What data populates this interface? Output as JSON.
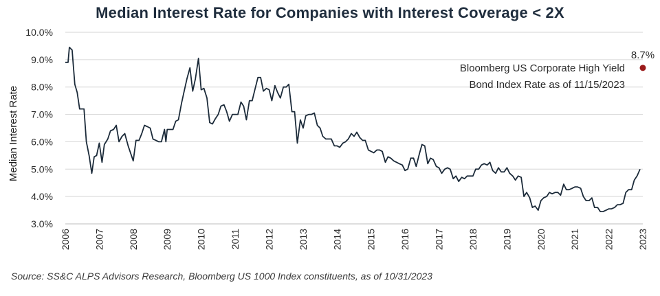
{
  "chart_data": {
    "type": "line",
    "title": "Median Interest Rate for Companies with Interest Coverage < 2X",
    "ylabel": "Median Interest Rate",
    "xlabel": "",
    "ylim": [
      3.0,
      10.0
    ],
    "y_ticks": [
      "10.0%",
      "9.0%",
      "8.0%",
      "7.0%",
      "6.0%",
      "5.0%",
      "4.0%",
      "3.0%"
    ],
    "x_ticks": [
      "2006",
      "2007",
      "2008",
      "2009",
      "2010",
      "2011",
      "2012",
      "2013",
      "2014",
      "2015",
      "2016",
      "2017",
      "2018",
      "2019",
      "2020",
      "2021",
      "2022",
      "2023"
    ],
    "xlim": [
      2006.0,
      2023.0
    ],
    "grid": true,
    "series": [
      {
        "name": "Median Interest Rate",
        "color": "#1c2b3a",
        "points": [
          [
            2006.0,
            8.9
          ],
          [
            2006.08,
            8.9
          ],
          [
            2006.12,
            9.45
          ],
          [
            2006.2,
            9.35
          ],
          [
            2006.28,
            8.1
          ],
          [
            2006.35,
            7.8
          ],
          [
            2006.42,
            7.2
          ],
          [
            2006.55,
            7.2
          ],
          [
            2006.62,
            6.0
          ],
          [
            2006.7,
            5.5
          ],
          [
            2006.78,
            4.85
          ],
          [
            2006.85,
            5.45
          ],
          [
            2006.92,
            5.5
          ],
          [
            2007.0,
            5.95
          ],
          [
            2007.08,
            5.25
          ],
          [
            2007.15,
            5.9
          ],
          [
            2007.25,
            6.1
          ],
          [
            2007.33,
            6.4
          ],
          [
            2007.42,
            6.45
          ],
          [
            2007.5,
            6.6
          ],
          [
            2007.58,
            6.0
          ],
          [
            2007.67,
            6.2
          ],
          [
            2007.75,
            6.3
          ],
          [
            2007.85,
            5.85
          ],
          [
            2008.0,
            5.3
          ],
          [
            2008.08,
            6.05
          ],
          [
            2008.17,
            6.05
          ],
          [
            2008.25,
            6.3
          ],
          [
            2008.33,
            6.6
          ],
          [
            2008.42,
            6.55
          ],
          [
            2008.5,
            6.5
          ],
          [
            2008.58,
            6.1
          ],
          [
            2008.67,
            6.05
          ],
          [
            2008.75,
            6.0
          ],
          [
            2008.83,
            6.0
          ],
          [
            2008.92,
            6.45
          ],
          [
            2008.96,
            6.0
          ],
          [
            2009.0,
            6.45
          ],
          [
            2009.08,
            6.45
          ],
          [
            2009.17,
            6.45
          ],
          [
            2009.25,
            6.75
          ],
          [
            2009.33,
            6.8
          ],
          [
            2009.42,
            7.4
          ],
          [
            2009.5,
            7.85
          ],
          [
            2009.58,
            8.3
          ],
          [
            2009.67,
            8.7
          ],
          [
            2009.75,
            7.85
          ],
          [
            2009.83,
            8.3
          ],
          [
            2009.92,
            9.05
          ],
          [
            2010.0,
            7.9
          ],
          [
            2010.08,
            7.95
          ],
          [
            2010.17,
            7.6
          ],
          [
            2010.25,
            6.7
          ],
          [
            2010.33,
            6.65
          ],
          [
            2010.42,
            6.85
          ],
          [
            2010.5,
            7.0
          ],
          [
            2010.58,
            7.3
          ],
          [
            2010.67,
            7.35
          ],
          [
            2010.75,
            7.1
          ],
          [
            2010.83,
            6.75
          ],
          [
            2010.92,
            7.0
          ],
          [
            2011.0,
            7.0
          ],
          [
            2011.08,
            7.0
          ],
          [
            2011.17,
            7.45
          ],
          [
            2011.25,
            7.3
          ],
          [
            2011.33,
            6.8
          ],
          [
            2011.42,
            7.5
          ],
          [
            2011.5,
            7.5
          ],
          [
            2011.58,
            7.9
          ],
          [
            2011.67,
            8.35
          ],
          [
            2011.75,
            8.35
          ],
          [
            2011.83,
            7.85
          ],
          [
            2011.92,
            7.95
          ],
          [
            2012.0,
            7.9
          ],
          [
            2012.08,
            7.5
          ],
          [
            2012.17,
            8.05
          ],
          [
            2012.25,
            7.8
          ],
          [
            2012.33,
            7.6
          ],
          [
            2012.42,
            8.0
          ],
          [
            2012.5,
            8.0
          ],
          [
            2012.58,
            8.1
          ],
          [
            2012.67,
            7.1
          ],
          [
            2012.75,
            7.1
          ],
          [
            2012.83,
            5.95
          ],
          [
            2012.92,
            6.8
          ],
          [
            2013.0,
            6.5
          ],
          [
            2013.08,
            6.95
          ],
          [
            2013.17,
            7.0
          ],
          [
            2013.25,
            7.0
          ],
          [
            2013.33,
            7.05
          ],
          [
            2013.42,
            6.6
          ],
          [
            2013.5,
            6.5
          ],
          [
            2013.58,
            6.2
          ],
          [
            2013.67,
            6.1
          ],
          [
            2013.75,
            6.1
          ],
          [
            2013.83,
            6.1
          ],
          [
            2013.92,
            5.85
          ],
          [
            2014.0,
            5.85
          ],
          [
            2014.08,
            5.8
          ],
          [
            2014.17,
            5.95
          ],
          [
            2014.25,
            6.0
          ],
          [
            2014.33,
            6.1
          ],
          [
            2014.42,
            6.3
          ],
          [
            2014.5,
            6.2
          ],
          [
            2014.58,
            6.35
          ],
          [
            2014.67,
            6.15
          ],
          [
            2014.75,
            6.05
          ],
          [
            2014.83,
            6.05
          ],
          [
            2014.92,
            5.7
          ],
          [
            2015.0,
            5.65
          ],
          [
            2015.08,
            5.6
          ],
          [
            2015.17,
            5.7
          ],
          [
            2015.25,
            5.7
          ],
          [
            2015.33,
            5.65
          ],
          [
            2015.42,
            5.25
          ],
          [
            2015.5,
            5.45
          ],
          [
            2015.58,
            5.4
          ],
          [
            2015.67,
            5.3
          ],
          [
            2015.75,
            5.25
          ],
          [
            2015.83,
            5.2
          ],
          [
            2015.92,
            5.15
          ],
          [
            2016.0,
            4.95
          ],
          [
            2016.08,
            5.0
          ],
          [
            2016.17,
            5.4
          ],
          [
            2016.25,
            5.4
          ],
          [
            2016.33,
            5.1
          ],
          [
            2016.42,
            5.55
          ],
          [
            2016.5,
            5.9
          ],
          [
            2016.58,
            5.85
          ],
          [
            2016.67,
            5.2
          ],
          [
            2016.75,
            5.4
          ],
          [
            2016.83,
            5.35
          ],
          [
            2016.92,
            5.1
          ],
          [
            2017.0,
            5.05
          ],
          [
            2017.08,
            4.85
          ],
          [
            2017.17,
            5.0
          ],
          [
            2017.25,
            5.05
          ],
          [
            2017.33,
            5.0
          ],
          [
            2017.42,
            4.65
          ],
          [
            2017.5,
            4.75
          ],
          [
            2017.58,
            4.55
          ],
          [
            2017.67,
            4.7
          ],
          [
            2017.75,
            4.65
          ],
          [
            2017.83,
            4.75
          ],
          [
            2017.92,
            4.75
          ],
          [
            2018.0,
            4.75
          ],
          [
            2018.08,
            5.0
          ],
          [
            2018.17,
            5.0
          ],
          [
            2018.25,
            5.15
          ],
          [
            2018.33,
            5.2
          ],
          [
            2018.42,
            5.15
          ],
          [
            2018.5,
            5.25
          ],
          [
            2018.58,
            4.95
          ],
          [
            2018.67,
            4.85
          ],
          [
            2018.75,
            5.05
          ],
          [
            2018.83,
            4.9
          ],
          [
            2018.92,
            4.9
          ],
          [
            2019.0,
            5.05
          ],
          [
            2019.08,
            4.85
          ],
          [
            2019.17,
            4.75
          ],
          [
            2019.25,
            4.6
          ],
          [
            2019.33,
            4.75
          ],
          [
            2019.42,
            4.7
          ],
          [
            2019.5,
            4.0
          ],
          [
            2019.58,
            4.15
          ],
          [
            2019.67,
            3.95
          ],
          [
            2019.75,
            3.6
          ],
          [
            2019.83,
            3.65
          ],
          [
            2019.92,
            3.5
          ],
          [
            2020.0,
            3.85
          ],
          [
            2020.08,
            3.95
          ],
          [
            2020.17,
            4.0
          ],
          [
            2020.25,
            4.15
          ],
          [
            2020.33,
            4.1
          ],
          [
            2020.42,
            4.15
          ],
          [
            2020.5,
            4.15
          ],
          [
            2020.58,
            4.05
          ],
          [
            2020.67,
            4.45
          ],
          [
            2020.75,
            4.25
          ],
          [
            2020.83,
            4.25
          ],
          [
            2020.92,
            4.3
          ],
          [
            2021.0,
            4.35
          ],
          [
            2021.08,
            4.35
          ],
          [
            2021.17,
            4.3
          ],
          [
            2021.25,
            4.0
          ],
          [
            2021.33,
            3.85
          ],
          [
            2021.42,
            3.85
          ],
          [
            2021.5,
            3.95
          ],
          [
            2021.58,
            3.6
          ],
          [
            2021.67,
            3.6
          ],
          [
            2021.75,
            3.45
          ],
          [
            2021.83,
            3.45
          ],
          [
            2021.92,
            3.5
          ],
          [
            2022.0,
            3.55
          ],
          [
            2022.08,
            3.55
          ],
          [
            2022.17,
            3.6
          ],
          [
            2022.25,
            3.7
          ],
          [
            2022.33,
            3.7
          ],
          [
            2022.42,
            3.75
          ],
          [
            2022.5,
            4.15
          ],
          [
            2022.58,
            4.25
          ],
          [
            2022.67,
            4.25
          ],
          [
            2022.75,
            4.6
          ],
          [
            2022.83,
            4.75
          ],
          [
            2022.92,
            5.0
          ]
        ]
      }
    ],
    "marker": {
      "name": "Bloomberg US Corporate High Yield Bond Index Rate as of 11/15/2023",
      "x": 2023.0,
      "y": 8.7,
      "value_label": "8.7%",
      "label_lines": [
        "Bloomberg US Corporate High Yield",
        "Bond Index Rate as of 11/15/2023"
      ],
      "color": "#9b1b1b"
    }
  },
  "source": "Source: SS&C ALPS Advisors Research, Bloomberg US 1000 Index constituents, as of 10/31/2023"
}
